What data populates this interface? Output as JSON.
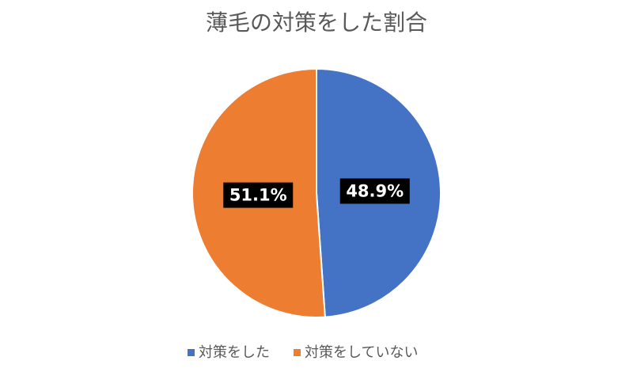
{
  "chart_data": {
    "type": "pie",
    "title": "薄毛の対策をした割合",
    "categories": [
      "対策をした",
      "対策をしていない"
    ],
    "values": [
      48.9,
      51.1
    ],
    "value_labels": [
      "48.9%",
      "51.1%"
    ],
    "colors": [
      "#4472c4",
      "#ed7d31"
    ],
    "legend": "bottom"
  }
}
